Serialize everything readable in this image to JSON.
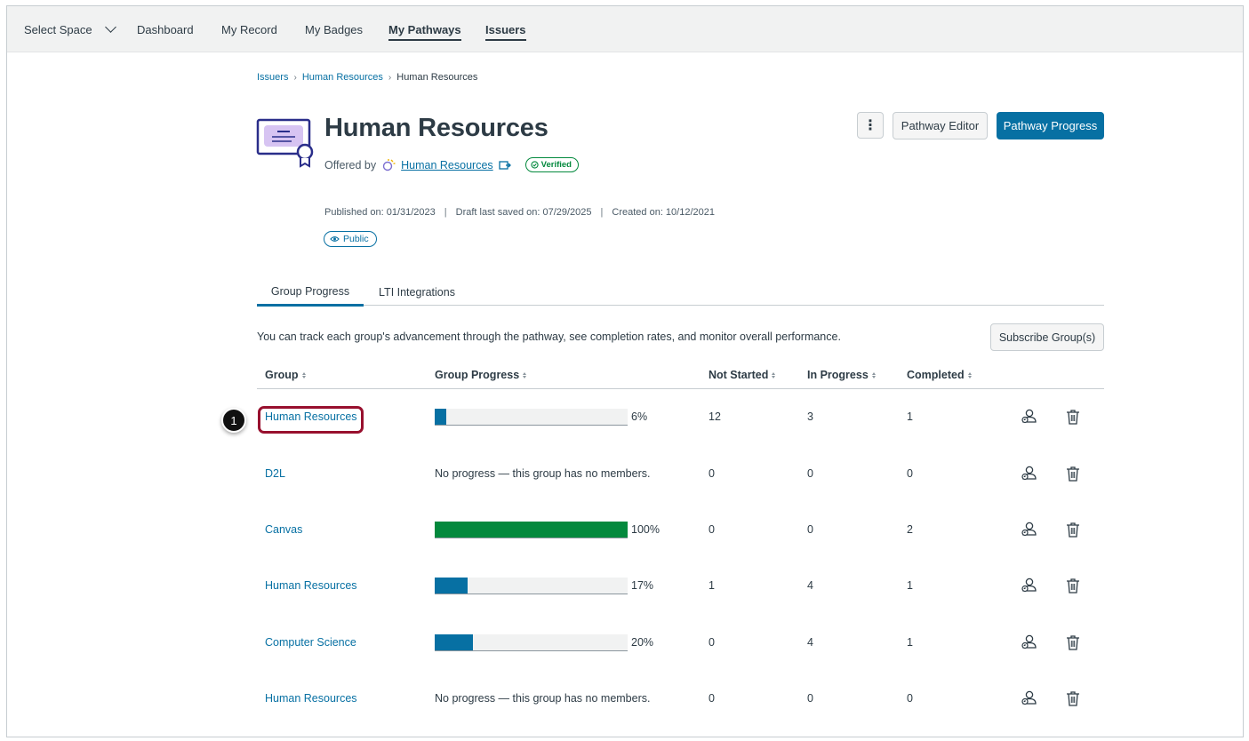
{
  "nav": {
    "items": [
      {
        "label": "Select Space",
        "active": false
      },
      {
        "label": "Dashboard",
        "active": false
      },
      {
        "label": "My Record",
        "active": false
      },
      {
        "label": "My Badges",
        "active": false
      },
      {
        "label": "My Pathways",
        "active": true
      },
      {
        "label": "Issuers",
        "active": true
      }
    ]
  },
  "breadcrumb": [
    "Issuers",
    "Human Resources",
    "Human Resources"
  ],
  "header": {
    "title": "Human Resources",
    "offered_by_label": "Offered by",
    "issuer": "Human Resources",
    "verified": "Verified",
    "kebab": "⋮",
    "pathway_editor": "Pathway Editor",
    "pathway_progress": "Pathway Progress"
  },
  "meta": {
    "published": "Published on: 01/31/2023",
    "draft_saved": "Draft last saved on: 07/29/2025",
    "created": "Created on: 10/12/2021",
    "visibility": "Public"
  },
  "tabs": [
    "Group Progress",
    "LTI Integrations"
  ],
  "description": "You can track each group's advancement through the pathway, see completion rates, and monitor overall performance.",
  "subscribe_button": "Subscribe Group(s)",
  "table": {
    "headers": [
      "Group",
      "Group Progress",
      "Not Started",
      "In Progress",
      "Completed"
    ],
    "rows": [
      {
        "group": "Human Resources",
        "progress": 0.06,
        "progress_text": "6%",
        "no_progress": "",
        "not_started": "12",
        "in_progress": "3",
        "completed": "1",
        "bar_color": "#0770a3"
      },
      {
        "group": "D2L",
        "progress": null,
        "progress_text": "",
        "no_progress": "No progress — this group has no members.",
        "not_started": "0",
        "in_progress": "0",
        "completed": "0",
        "bar_color": ""
      },
      {
        "group": "Canvas",
        "progress": 1.0,
        "progress_text": "100%",
        "no_progress": "",
        "not_started": "0",
        "in_progress": "0",
        "completed": "2",
        "bar_color": "#03893d"
      },
      {
        "group": "Human Resources",
        "progress": 0.17,
        "progress_text": "17%",
        "no_progress": "",
        "not_started": "1",
        "in_progress": "4",
        "completed": "1",
        "bar_color": "#0770a3"
      },
      {
        "group": "Computer Science",
        "progress": 0.2,
        "progress_text": "20%",
        "no_progress": "",
        "not_started": "0",
        "in_progress": "4",
        "completed": "1",
        "bar_color": "#0770a3"
      },
      {
        "group": "Human Resources",
        "progress": null,
        "progress_text": "",
        "no_progress": "No progress — this group has no members.",
        "not_started": "0",
        "in_progress": "0",
        "completed": "0",
        "bar_color": ""
      }
    ],
    "row_icons": [
      "manage-users-icon",
      "trash-icon"
    ]
  },
  "callout": "1",
  "colors": {
    "accent": "#0770a3",
    "success": "#03893d",
    "highlight": "#98102e",
    "text": "#2d3b45"
  }
}
